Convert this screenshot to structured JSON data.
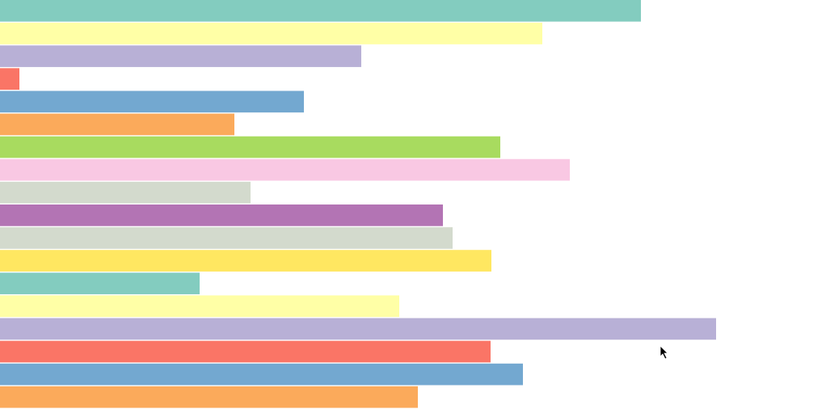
{
  "chart_data": {
    "type": "hbar",
    "categories": [
      null,
      null,
      null,
      null,
      null,
      null,
      null,
      null,
      null,
      null,
      null,
      null,
      null,
      null,
      null,
      null,
      null,
      null
    ],
    "values": [
      793,
      671,
      447,
      24,
      376,
      290,
      619,
      705,
      310,
      548,
      560,
      608,
      247,
      494,
      886,
      607,
      647,
      517
    ],
    "colors": [
      "#83ccbf",
      "#ffffa6",
      "#b8b0d6",
      "#fa7566",
      "#73a8d0",
      "#fbaa5b",
      "#a8db5f",
      "#f9c8e3",
      "#d3dacd",
      "#b374b4",
      "#d3dacd",
      "#ffe761",
      "#83ccbf",
      "#ffffa6",
      "#b8b0d6",
      "#fa7566",
      "#73a8d0",
      "#fbaa5b"
    ],
    "xlim": [
      0,
      1022
    ]
  }
}
